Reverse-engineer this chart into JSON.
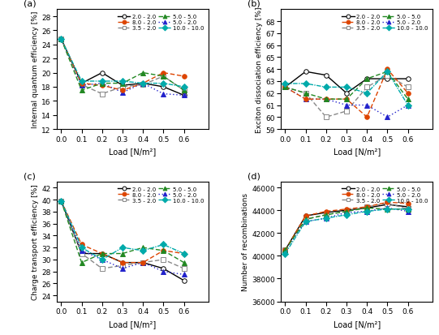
{
  "x": [
    0.0,
    0.1,
    0.2,
    0.3,
    0.4,
    0.5,
    0.6
  ],
  "panel_a": {
    "title": "(a)",
    "ylabel": "Internal quantum efficiency [%]",
    "xlabel": "Load [N/m²]",
    "ylim": [
      12,
      29
    ],
    "yticks": [
      12,
      14,
      16,
      18,
      20,
      22,
      24,
      26,
      28
    ],
    "series": [
      {
        "name": "2.0 - 2.0",
        "y": [
          24.8,
          18.5,
          20.0,
          18.2,
          18.5,
          18.0,
          16.8
        ],
        "color": "#000000",
        "marker": "o",
        "mfc": "white",
        "ls": "-",
        "dashes": null
      },
      {
        "name": "3.5 - 2.0",
        "y": [
          24.8,
          18.3,
          17.0,
          18.0,
          18.3,
          19.5,
          17.5
        ],
        "color": "#888888",
        "marker": "s",
        "mfc": "white",
        "ls": "--",
        "dashes": [
          4,
          2
        ]
      },
      {
        "name": "5.0 - 2.0",
        "y": [
          24.8,
          18.2,
          18.5,
          17.2,
          18.5,
          17.0,
          16.8
        ],
        "color": "#2222cc",
        "marker": "^",
        "mfc": "#2222cc",
        "ls": ":",
        "dashes": [
          1,
          2
        ]
      },
      {
        "name": "8.0 - 2.0",
        "y": [
          24.8,
          18.5,
          18.2,
          17.5,
          18.5,
          20.0,
          19.5
        ],
        "color": "#dd4400",
        "marker": "o",
        "mfc": "#dd4400",
        "ls": "--",
        "dashes": [
          4,
          2
        ]
      },
      {
        "name": "5.0 - 5.0",
        "y": [
          24.8,
          17.5,
          18.5,
          18.5,
          20.0,
          19.5,
          17.5
        ],
        "color": "#228822",
        "marker": "^",
        "mfc": "#228822",
        "ls": "--",
        "dashes": [
          4,
          2
        ]
      },
      {
        "name": "10.0 - 10.0",
        "y": [
          24.8,
          18.8,
          18.8,
          18.8,
          18.5,
          18.5,
          18.0
        ],
        "color": "#00aaaa",
        "marker": "D",
        "mfc": "#00aaaa",
        "ls": "-.",
        "dashes": [
          4,
          1,
          1,
          1
        ]
      }
    ]
  },
  "panel_b": {
    "title": "(b)",
    "ylabel": "Exciton dissociation efficiency [%]",
    "xlabel": "Load [N/m²]",
    "ylim": [
      59,
      69
    ],
    "yticks": [
      59,
      60,
      61,
      62,
      63,
      64,
      65,
      66,
      67,
      68
    ],
    "series": [
      {
        "name": "2.0 - 2.0",
        "y": [
          62.5,
          63.8,
          63.5,
          62.0,
          63.2,
          63.2,
          63.2
        ],
        "color": "#000000",
        "marker": "o",
        "mfc": "white",
        "ls": "-",
        "dashes": null
      },
      {
        "name": "3.5 - 2.0",
        "y": [
          62.5,
          62.0,
          60.0,
          60.5,
          62.5,
          63.5,
          62.5
        ],
        "color": "#888888",
        "marker": "s",
        "mfc": "white",
        "ls": "--",
        "dashes": [
          4,
          2
        ]
      },
      {
        "name": "5.0 - 2.0",
        "y": [
          62.5,
          61.5,
          61.5,
          61.0,
          61.0,
          60.0,
          61.0
        ],
        "color": "#2222cc",
        "marker": "^",
        "mfc": "#2222cc",
        "ls": ":",
        "dashes": [
          1,
          2
        ]
      },
      {
        "name": "8.0 - 2.0",
        "y": [
          62.5,
          61.5,
          61.5,
          61.5,
          60.0,
          64.0,
          62.0
        ],
        "color": "#dd4400",
        "marker": "o",
        "mfc": "#dd4400",
        "ls": "--",
        "dashes": [
          4,
          2
        ]
      },
      {
        "name": "5.0 - 5.0",
        "y": [
          62.5,
          62.0,
          61.5,
          61.5,
          63.2,
          63.8,
          61.5
        ],
        "color": "#228822",
        "marker": "^",
        "mfc": "#228822",
        "ls": "--",
        "dashes": [
          4,
          2
        ]
      },
      {
        "name": "10.0 - 10.0",
        "y": [
          62.8,
          62.8,
          62.5,
          62.5,
          62.0,
          63.8,
          61.0
        ],
        "color": "#00aaaa",
        "marker": "D",
        "mfc": "#00aaaa",
        "ls": "-.",
        "dashes": [
          4,
          1,
          1,
          1
        ]
      }
    ]
  },
  "panel_c": {
    "title": "(c)",
    "ylabel": "Charge transport efficiency [%]",
    "xlabel": "Load [N/m²]",
    "ylim": [
      23,
      43
    ],
    "yticks": [
      24,
      26,
      28,
      30,
      32,
      34,
      36,
      38,
      40,
      42
    ],
    "series": [
      {
        "name": "2.0 - 2.0",
        "y": [
          39.8,
          31.0,
          31.0,
          29.5,
          29.5,
          28.5,
          26.5
        ],
        "color": "#000000",
        "marker": "o",
        "mfc": "white",
        "ls": "-",
        "dashes": null
      },
      {
        "name": "3.5 - 2.0",
        "y": [
          39.8,
          31.0,
          28.5,
          29.0,
          29.5,
          30.0,
          28.5
        ],
        "color": "#888888",
        "marker": "s",
        "mfc": "white",
        "ls": "--",
        "dashes": [
          4,
          2
        ]
      },
      {
        "name": "5.0 - 2.0",
        "y": [
          39.8,
          31.5,
          30.0,
          28.5,
          29.5,
          28.0,
          27.5
        ],
        "color": "#2222cc",
        "marker": "^",
        "mfc": "#2222cc",
        "ls": ":",
        "dashes": [
          1,
          2
        ]
      },
      {
        "name": "8.0 - 2.0",
        "y": [
          39.8,
          32.5,
          31.0,
          29.5,
          29.5,
          31.5,
          31.0
        ],
        "color": "#dd4400",
        "marker": "o",
        "mfc": "#dd4400",
        "ls": "--",
        "dashes": [
          4,
          2
        ]
      },
      {
        "name": "5.0 - 5.0",
        "y": [
          39.8,
          29.5,
          31.0,
          31.0,
          32.0,
          31.5,
          29.5
        ],
        "color": "#228822",
        "marker": "^",
        "mfc": "#228822",
        "ls": "--",
        "dashes": [
          4,
          2
        ]
      },
      {
        "name": "10.0 - 10.0",
        "y": [
          39.8,
          32.0,
          30.0,
          32.0,
          31.5,
          32.5,
          31.0
        ],
        "color": "#00aaaa",
        "marker": "D",
        "mfc": "#00aaaa",
        "ls": "-.",
        "dashes": [
          4,
          1,
          1,
          1
        ]
      }
    ]
  },
  "panel_d": {
    "title": "(d)",
    "ylabel": "Number of recombinations",
    "xlabel": "Load [N/m²]",
    "ylim": [
      36000,
      46500
    ],
    "yticks": [
      36000,
      38000,
      40000,
      42000,
      44000,
      46000
    ],
    "series": [
      {
        "name": "2.0 - 2.0",
        "y": [
          40500,
          43500,
          43800,
          44000,
          44200,
          44500,
          44300
        ],
        "color": "#000000",
        "marker": "o",
        "mfc": "white",
        "ls": "-",
        "dashes": null
      },
      {
        "name": "3.5 - 2.0",
        "y": [
          40500,
          43200,
          43600,
          43900,
          44300,
          44600,
          44100
        ],
        "color": "#888888",
        "marker": "s",
        "mfc": "white",
        "ls": "--",
        "dashes": [
          4,
          2
        ]
      },
      {
        "name": "5.0 - 2.0",
        "y": [
          40500,
          43000,
          43300,
          43800,
          43900,
          44200,
          43900
        ],
        "color": "#2222cc",
        "marker": "^",
        "mfc": "#2222cc",
        "ls": ":",
        "dashes": [
          1,
          2
        ]
      },
      {
        "name": "8.0 - 2.0",
        "y": [
          40500,
          43500,
          43900,
          44100,
          44300,
          44700,
          44600
        ],
        "color": "#dd4400",
        "marker": "o",
        "mfc": "#dd4400",
        "ls": "--",
        "dashes": [
          4,
          2
        ]
      },
      {
        "name": "5.0 - 5.0",
        "y": [
          40500,
          43200,
          43600,
          43900,
          44200,
          44100,
          44100
        ],
        "color": "#228822",
        "marker": "^",
        "mfc": "#228822",
        "ls": "--",
        "dashes": [
          4,
          2
        ]
      },
      {
        "name": "10.0 - 10.0",
        "y": [
          40200,
          43000,
          43300,
          43600,
          43900,
          44100,
          44100
        ],
        "color": "#00aaaa",
        "marker": "D",
        "mfc": "#00aaaa",
        "ls": "-.",
        "dashes": [
          4,
          1,
          1,
          1
        ]
      }
    ]
  },
  "legend_cols": [
    [
      "2.0 - 2.0",
      "3.5 - 2.0",
      "5.0 - 2.0"
    ],
    [
      "8.0 - 2.0",
      "5.0 - 5.0",
      "10.0 - 10.0"
    ]
  ]
}
